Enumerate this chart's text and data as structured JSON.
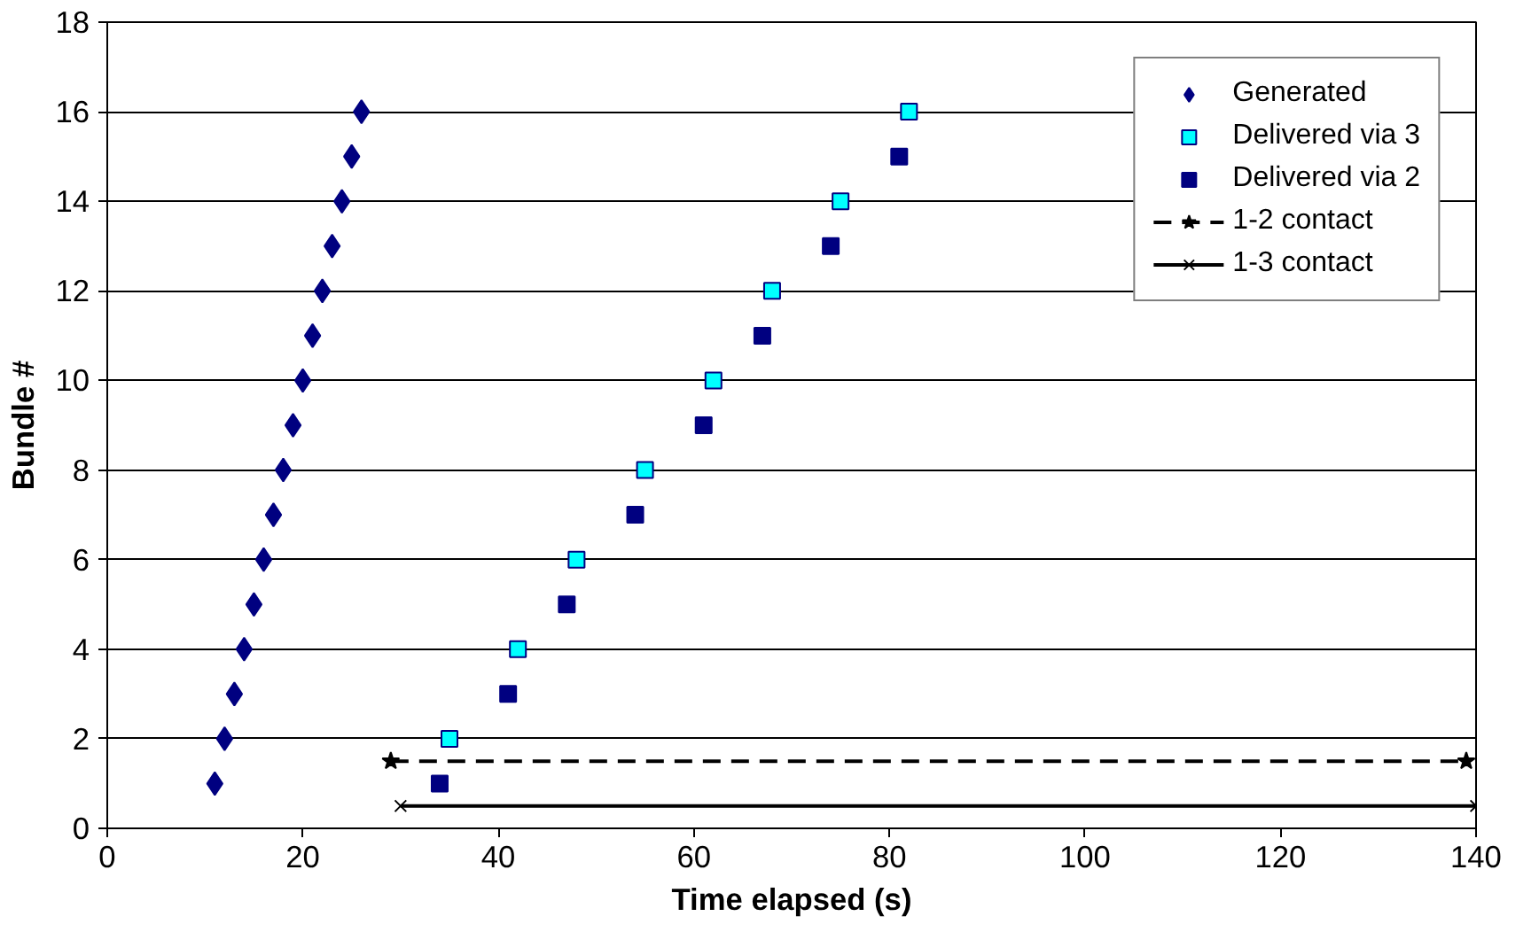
{
  "chart_data": {
    "type": "scatter",
    "xlabel": "Time elapsed (s)",
    "ylabel": "Bundle #",
    "xlim": [
      0,
      140
    ],
    "xticks": [
      0,
      20,
      40,
      60,
      80,
      100,
      120,
      140
    ],
    "ylim": [
      0,
      18
    ],
    "yticks": [
      0,
      2,
      4,
      6,
      8,
      10,
      12,
      14,
      16,
      18
    ],
    "grid": "y",
    "legend": "top right",
    "series": [
      {
        "name": "Generated",
        "color": "#000080",
        "marker": "diamond",
        "x": [
          11,
          12,
          13,
          14,
          15,
          16,
          17,
          18,
          19,
          20,
          21,
          22,
          23,
          24,
          25,
          26
        ],
        "values": [
          1,
          2,
          3,
          4,
          5,
          6,
          7,
          8,
          9,
          10,
          11,
          12,
          13,
          14,
          15,
          16
        ]
      },
      {
        "name": "Delivered via 3",
        "color": "#00ffff",
        "marker": "square",
        "x": [
          35,
          42,
          48,
          55,
          62,
          68,
          75,
          82
        ],
        "values": [
          2,
          4,
          6,
          8,
          10,
          12,
          14,
          16
        ]
      },
      {
        "name": "Delivered via 2",
        "color": "#000080",
        "marker": "square",
        "x": [
          34,
          41,
          47,
          54,
          61,
          67,
          74,
          81
        ],
        "values": [
          1,
          3,
          5,
          7,
          9,
          11,
          13,
          15
        ]
      },
      {
        "name": "1-2 contact",
        "type": "line",
        "color": "#000000",
        "marker": "star",
        "line_style": "dashed",
        "x": [
          29,
          139
        ],
        "values": [
          1.5,
          1.5
        ]
      },
      {
        "name": "1-3 contact",
        "type": "line",
        "color": "#000000",
        "marker": "cross",
        "line_style": "solid",
        "x": [
          30,
          140
        ],
        "values": [
          0.5,
          0.5
        ]
      }
    ]
  }
}
